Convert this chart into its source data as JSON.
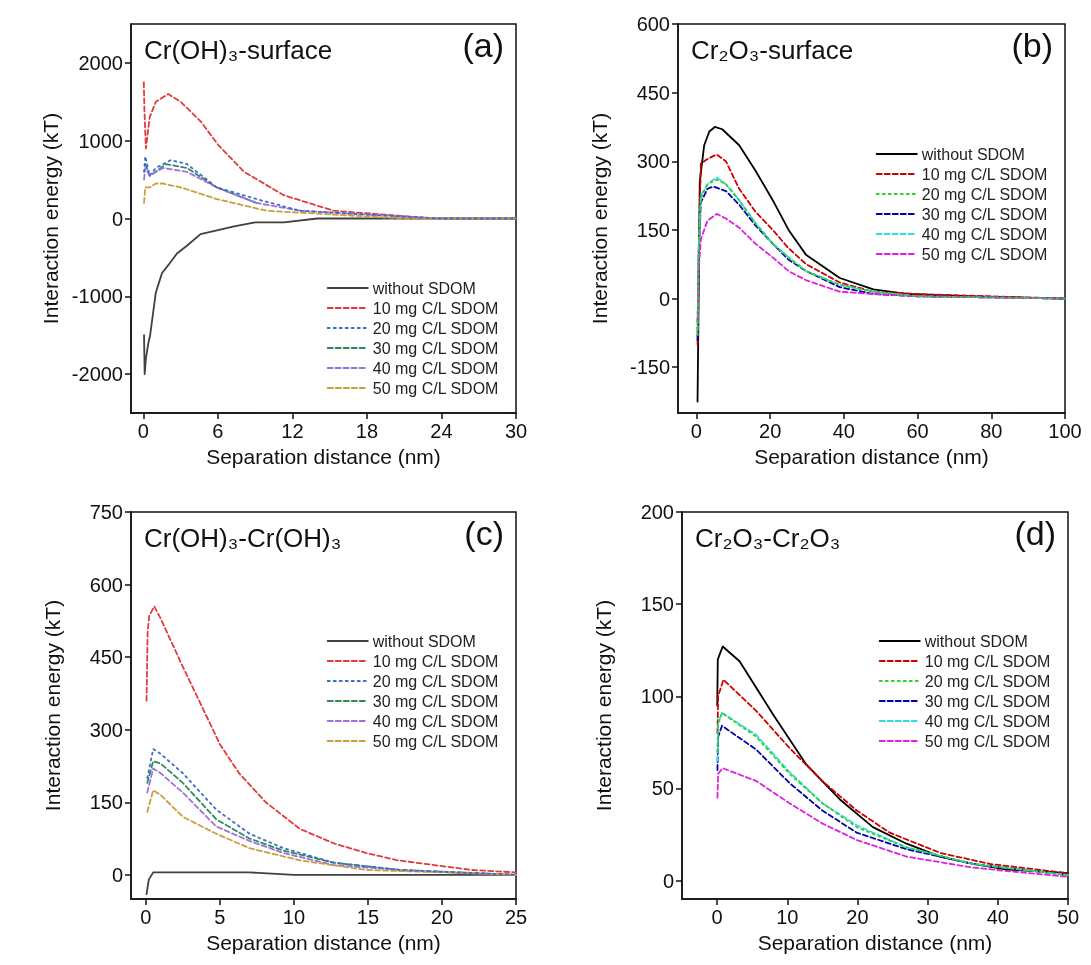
{
  "chart_data": [
    {
      "type": "line",
      "title": "Cr(OH)₃-surface",
      "annotations": [
        "(a)"
      ],
      "xlabel": "Separation distance (nm)",
      "ylabel": "Interaction energy (kT)",
      "xlim": [
        -1,
        30
      ],
      "xticks": [
        0,
        6,
        12,
        18,
        24,
        30
      ],
      "ylim": [
        -2500,
        2500
      ],
      "yticks": [
        -2000,
        -1000,
        0,
        1000,
        2000
      ],
      "legend": "bottom right",
      "series": [
        {
          "name": "without SDOM",
          "color": "#404040",
          "line_style": "solid",
          "x": [
            0.05,
            0.1,
            0.2,
            0.4,
            0.54,
            1,
            1.5,
            2,
            2.7,
            3.5,
            4.6,
            6,
            7.3,
            9,
            11.3,
            14,
            18,
            24,
            30
          ],
          "values": [
            -1500,
            -2000,
            -1800,
            -1600,
            -1500,
            -950,
            -700,
            -600,
            -450,
            -350,
            -200,
            -150,
            -100,
            -50,
            -50,
            0,
            0,
            0,
            0
          ]
        },
        {
          "name": "10 mg C/L SDOM",
          "color": "#e03c3c",
          "line_style": "dashed",
          "x": [
            0.03,
            0.08,
            0.2,
            0.5,
            1,
            2,
            3,
            4.6,
            6,
            8.1,
            11.3,
            15.3,
            19.4,
            23.4,
            30
          ],
          "values": [
            1750,
            1400,
            900,
            1300,
            1500,
            1600,
            1500,
            1250,
            950,
            600,
            300,
            100,
            50,
            0,
            0
          ]
        },
        {
          "name": "20 mg C/L SDOM",
          "color": "#3c6ec8",
          "line_style": "dotted",
          "x": [
            0.05,
            0.15,
            0.5,
            1,
            2.2,
            3.5,
            5.9,
            9.1,
            12.6,
            18,
            24,
            30
          ],
          "values": [
            600,
            800,
            550,
            650,
            750,
            700,
            400,
            250,
            100,
            50,
            0,
            0
          ]
        },
        {
          "name": "30 mg C/L SDOM",
          "color": "#2e8b57",
          "line_style": "dashed",
          "x": [
            0.15,
            0.5,
            1,
            1.8,
            3.5,
            5.9,
            9.1
          ],
          "values": [
            700,
            550,
            600,
            700,
            650,
            400,
            200
          ]
        },
        {
          "name": "40 mg C/L SDOM",
          "color": "#a070e0",
          "line_style": "dashed",
          "x": [
            0.05,
            0.15,
            0.5,
            1,
            1.6,
            3.5,
            5.9,
            9.1,
            12.6,
            18,
            24,
            30
          ],
          "values": [
            500,
            650,
            550,
            600,
            650,
            600,
            400,
            200,
            100,
            50,
            0,
            0
          ]
        },
        {
          "name": "50 mg C/L SDOM",
          "color": "#c8a03c",
          "line_style": "dashed",
          "x": [
            0.05,
            0.15,
            0.5,
            1,
            1.5,
            3,
            5.9,
            9.9,
            15.3,
            21,
            30
          ],
          "values": [
            200,
            400,
            400,
            450,
            450,
            400,
            250,
            100,
            50,
            0,
            0
          ]
        }
      ]
    },
    {
      "type": "line",
      "title": "Cr₂O₃-surface",
      "annotations": [
        "(b)"
      ],
      "xlabel": "Separation distance (nm)",
      "ylabel": "Interaction energy (kT)",
      "xlim": [
        -5,
        100
      ],
      "xticks": [
        0,
        20,
        40,
        60,
        80,
        100
      ],
      "ylim": [
        -250,
        600
      ],
      "yticks": [
        -150,
        0,
        150,
        300,
        450,
        600
      ],
      "legend": "right",
      "series": [
        {
          "name": "without SDOM",
          "color": "#000000",
          "line_style": "solid",
          "x": [
            0.3,
            0.6,
            0.9,
            2.1,
            3.5,
            5,
            7,
            11.6,
            16,
            20.7,
            25,
            29.8,
            38.9,
            48,
            57,
            75,
            100
          ],
          "values": [
            -225,
            0,
            255,
            335,
            365,
            375,
            370,
            335,
            280,
            215,
            150,
            95,
            45,
            20,
            10,
            5,
            0
          ]
        },
        {
          "name": "10 mg C/L SDOM",
          "color": "#cc0000",
          "line_style": "dashed",
          "x": [
            0.3,
            0.6,
            1.2,
            3,
            5.5,
            8,
            11.6,
            16,
            20.7,
            25,
            29.8,
            38.9,
            48,
            60,
            80,
            100
          ],
          "values": [
            -100,
            100,
            295,
            305,
            315,
            300,
            240,
            190,
            150,
            110,
            75,
            35,
            15,
            10,
            5,
            0
          ]
        },
        {
          "name": "20 mg C/L SDOM",
          "color": "#33cc33",
          "line_style": "dotted",
          "x": [
            0.3,
            0.6,
            1.2,
            3,
            5.5,
            8,
            11.6,
            16,
            20.7,
            25,
            29.8,
            38.9,
            48,
            60,
            100
          ],
          "values": [
            -80,
            100,
            220,
            250,
            260,
            250,
            215,
            165,
            120,
            90,
            60,
            30,
            15,
            5,
            0
          ]
        },
        {
          "name": "30 mg C/L SDOM",
          "color": "#0000aa",
          "line_style": "dashed",
          "x": [
            0.3,
            0.6,
            1.2,
            3,
            4.5,
            8,
            11.6,
            16,
            20.7,
            25,
            29.8,
            38.9,
            48,
            60,
            100
          ],
          "values": [
            -90,
            90,
            210,
            240,
            245,
            235,
            205,
            160,
            120,
            85,
            60,
            25,
            10,
            5,
            0
          ]
        },
        {
          "name": "40 mg C/L SDOM",
          "color": "#33dddd",
          "line_style": "dashed",
          "x": [
            0.3,
            0.6,
            1.2,
            3,
            5.5,
            8,
            11.6,
            16,
            20.7,
            25,
            29.8,
            38.9,
            48,
            60,
            100
          ],
          "values": [
            -70,
            110,
            225,
            250,
            265,
            250,
            215,
            165,
            120,
            90,
            60,
            30,
            15,
            5,
            0
          ]
        },
        {
          "name": "50 mg C/L SDOM",
          "color": "#dd22dd",
          "line_style": "dashed",
          "x": [
            0.3,
            0.6,
            1.2,
            3,
            5.5,
            8,
            11.6,
            16,
            20.7,
            25,
            29.8,
            38.9,
            48,
            60,
            100
          ],
          "values": [
            -50,
            60,
            130,
            170,
            185,
            175,
            155,
            120,
            90,
            60,
            40,
            15,
            10,
            5,
            0
          ]
        }
      ]
    },
    {
      "type": "line",
      "title": "Cr(OH)₃-Cr(OH)₃",
      "annotations": [
        "(c)"
      ],
      "xlabel": "Separation distance (nm)",
      "ylabel": "Interaction energy (kT)",
      "xlim": [
        -1,
        25
      ],
      "xticks": [
        0,
        5,
        10,
        15,
        20,
        25
      ],
      "ylim": [
        -50,
        750
      ],
      "yticks": [
        0,
        150,
        300,
        450,
        600,
        750
      ],
      "legend": "right",
      "series": [
        {
          "name": "without SDOM",
          "color": "#404040",
          "line_style": "solid",
          "x": [
            0.05,
            0.2,
            0.5,
            1,
            3,
            7,
            10,
            15,
            20,
            25
          ],
          "values": [
            -40,
            -10,
            5,
            5,
            5,
            5,
            0,
            0,
            0,
            0
          ]
        },
        {
          "name": "10 mg C/L SDOM",
          "color": "#e03c3c",
          "line_style": "dashed",
          "x": [
            0.05,
            0.12,
            0.23,
            0.57,
            1,
            1.6,
            2.5,
            3.6,
            5,
            6.3,
            8.1,
            10.4,
            12.7,
            14.9,
            17,
            19.5,
            22,
            25
          ],
          "values": [
            360,
            500,
            535,
            555,
            530,
            490,
            430,
            360,
            270,
            210,
            150,
            95,
            65,
            45,
            30,
            20,
            10,
            5
          ]
        },
        {
          "name": "20 mg C/L SDOM",
          "color": "#3c6ec8",
          "line_style": "dotted",
          "x": [
            0.1,
            0.5,
            1,
            2.5,
            4.75,
            7,
            9.3,
            12.7,
            17.2,
            21,
            25
          ],
          "values": [
            200,
            260,
            250,
            210,
            135,
            85,
            55,
            25,
            10,
            5,
            0
          ]
        },
        {
          "name": "30 mg C/L SDOM",
          "color": "#2e8b57",
          "line_style": "dashed",
          "x": [
            0.1,
            0.5,
            1,
            2.5,
            4.75,
            7,
            9.3,
            12.7,
            17.2,
            21,
            25
          ],
          "values": [
            190,
            235,
            230,
            190,
            115,
            75,
            50,
            25,
            10,
            5,
            0
          ]
        },
        {
          "name": "40 mg C/L SDOM",
          "color": "#a070e0",
          "line_style": "dashed",
          "x": [
            0.1,
            0.5,
            1,
            2.5,
            4.75,
            7,
            9.3,
            12.7,
            17.2,
            21,
            25
          ],
          "values": [
            170,
            220,
            210,
            170,
            100,
            70,
            45,
            20,
            10,
            5,
            0
          ]
        },
        {
          "name": "50 mg C/L SDOM",
          "color": "#c8a03c",
          "line_style": "dashed",
          "x": [
            0.1,
            0.5,
            1,
            2.5,
            4.75,
            7,
            10.4,
            14.9,
            20,
            25
          ],
          "values": [
            130,
            175,
            165,
            120,
            85,
            55,
            30,
            10,
            5,
            0
          ]
        }
      ]
    },
    {
      "type": "line",
      "title": "Cr₂O₃-Cr₂O₃",
      "annotations": [
        "(d)"
      ],
      "xlabel": "Separation distance (nm)",
      "ylabel": "Interaction energy (kT)",
      "xlim": [
        -5,
        50
      ],
      "xticks": [
        0,
        10,
        20,
        30,
        40,
        50
      ],
      "ylim": [
        -10,
        200
      ],
      "yticks": [
        0,
        50,
        100,
        150,
        200
      ],
      "legend": "right",
      "series": [
        {
          "name": "without SDOM",
          "color": "#000000",
          "line_style": "solid",
          "x": [
            0.02,
            0.1,
            0.8,
            3.2,
            8,
            12.7,
            17.5,
            22.2,
            27,
            31.8,
            36.5,
            41.3,
            50
          ],
          "values": [
            95,
            120,
            127,
            119,
            90,
            63,
            44,
            29,
            20,
            13,
            9,
            6,
            4
          ]
        },
        {
          "name": "10 mg C/L SDOM",
          "color": "#cc0000",
          "line_style": "dashed",
          "x": [
            0.05,
            0.15,
            0.9,
            5.6,
            10.3,
            15,
            19.9,
            24.6,
            31.8,
            38.9,
            50
          ],
          "values": [
            80,
            100,
            109,
            92,
            72,
            54,
            38,
            26,
            15,
            9,
            4
          ]
        },
        {
          "name": "20 mg C/L SDOM",
          "color": "#33cc33",
          "line_style": "dotted",
          "x": [
            0.05,
            0.15,
            0.7,
            5.6,
            10.3,
            15,
            19.9,
            27,
            36.5,
            50
          ],
          "values": [
            70,
            85,
            91,
            78,
            58,
            42,
            29,
            18,
            9,
            3
          ]
        },
        {
          "name": "30 mg C/L SDOM",
          "color": "#0000aa",
          "line_style": "dashed",
          "x": [
            0.05,
            0.15,
            0.7,
            5.6,
            10.3,
            15,
            19.9,
            27,
            36.5,
            50
          ],
          "values": [
            60,
            78,
            84,
            71,
            53,
            38,
            26,
            17,
            9,
            3
          ]
        },
        {
          "name": "40 mg C/L SDOM",
          "color": "#33dddd",
          "line_style": "dashed",
          "x": [
            0.05,
            0.15,
            0.7,
            5.6,
            10.3,
            15,
            19.9,
            27,
            36.5,
            50
          ],
          "values": [
            65,
            86,
            91,
            79,
            59,
            42,
            30,
            18,
            9,
            3
          ]
        },
        {
          "name": "50 mg C/L SDOM",
          "color": "#dd22dd",
          "line_style": "dashed",
          "x": [
            0.05,
            0.15,
            0.8,
            5.6,
            10.3,
            15,
            19.9,
            27,
            36.5,
            50
          ],
          "values": [
            45,
            58,
            61,
            54,
            42,
            31,
            22,
            13,
            7,
            2
          ]
        }
      ]
    }
  ]
}
